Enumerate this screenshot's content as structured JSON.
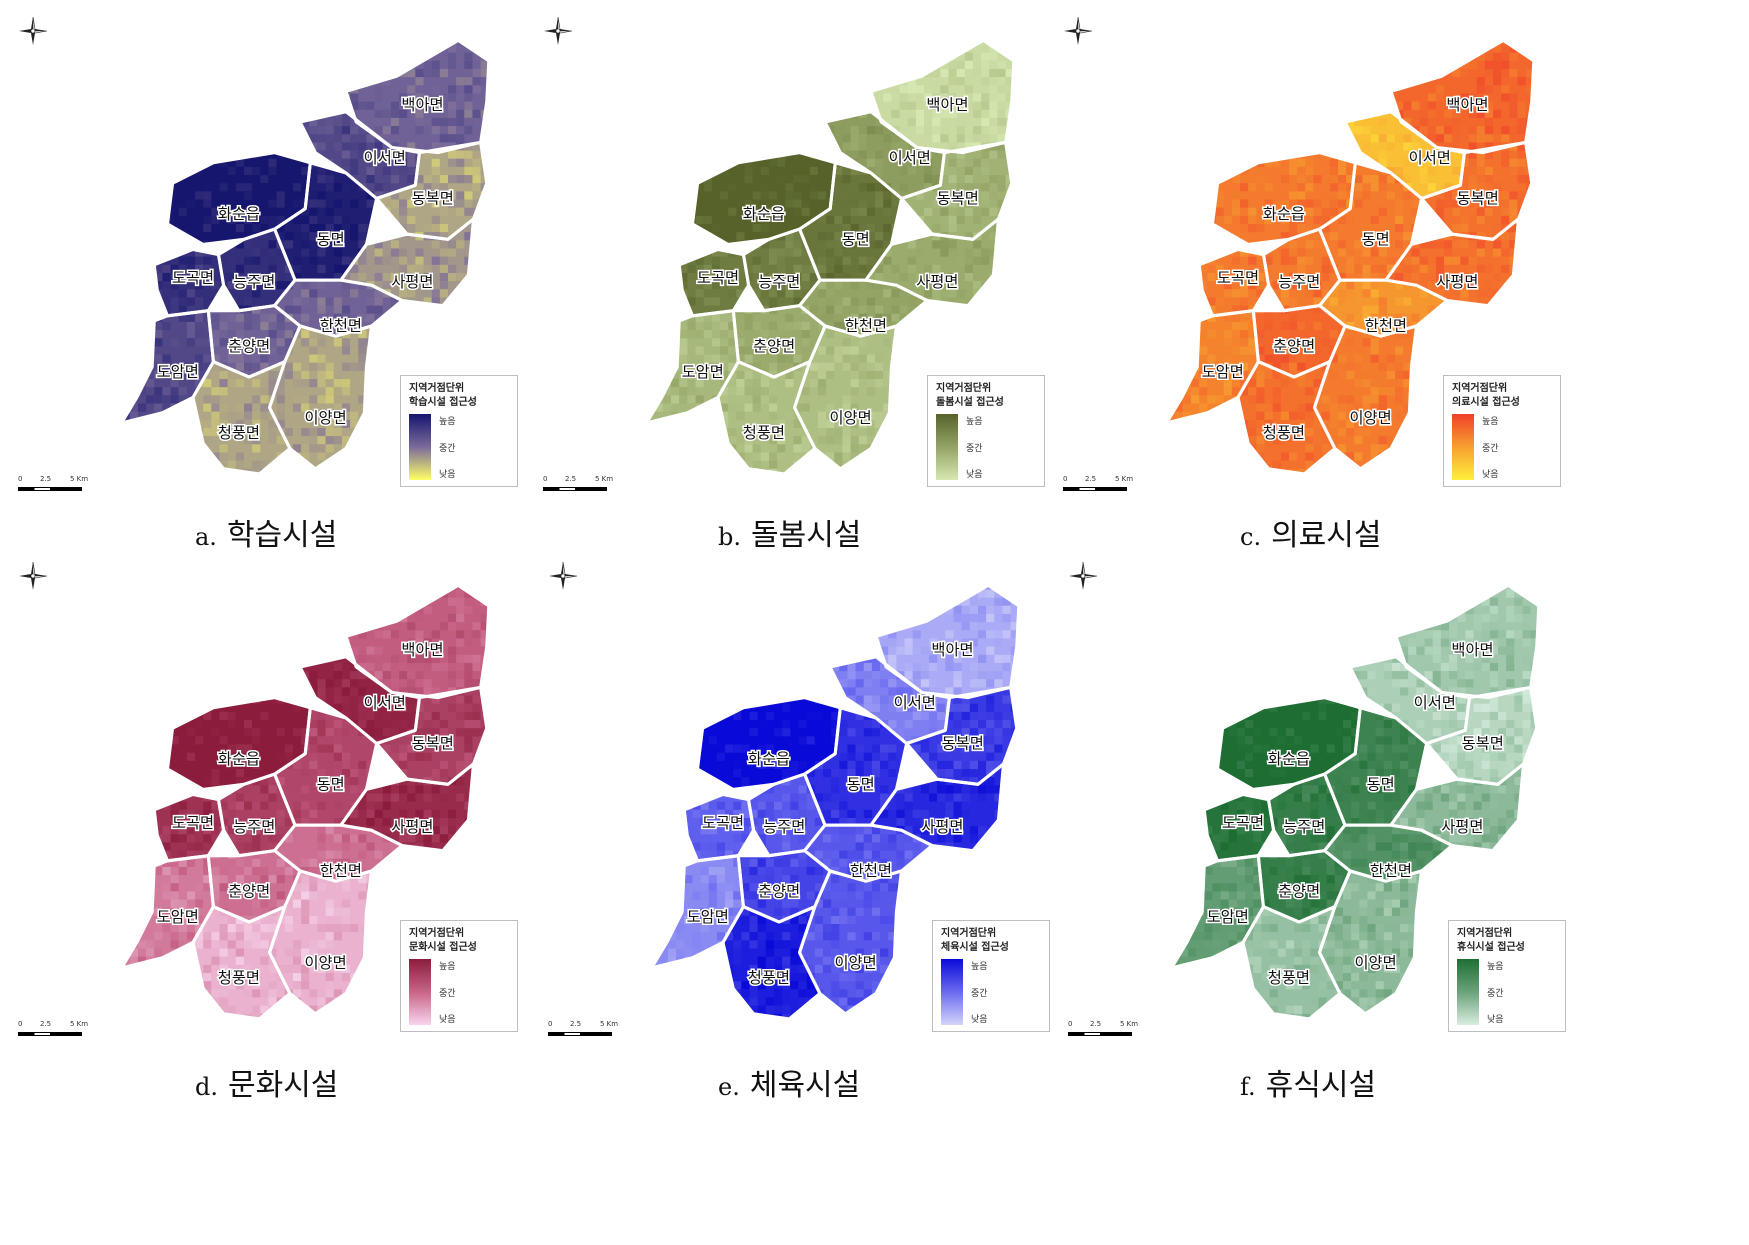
{
  "districts": [
    "백아면",
    "이서면",
    "동복면",
    "화순읍",
    "동면",
    "도곡면",
    "능주면",
    "사평면",
    "한천면",
    "춘양면",
    "도암면",
    "이양면",
    "청풍면"
  ],
  "legend_levels": {
    "high": "높음",
    "mid": "중간",
    "low": "낮음"
  },
  "scale": {
    "zero": "0",
    "mid": "2.5",
    "end": "5 Km"
  },
  "panels": [
    {
      "letter": "a.",
      "caption": "학습시설",
      "legend_title_1": "지역거점단위",
      "legend_title_2": "학습시설 접근성",
      "colors": {
        "high": "#16166e",
        "mid": "#7a6a9a",
        "low": "#ffff66"
      },
      "levels": {
        "백아면": 0.55,
        "이서면": 0.7,
        "동복면": 0.3,
        "화순읍": 1.0,
        "동면": 0.95,
        "도곡면": 0.85,
        "능주면": 0.85,
        "사평면": 0.35,
        "한천면": 0.55,
        "춘양면": 0.55,
        "도암면": 0.7,
        "이양면": 0.3,
        "청풍면": 0.3
      }
    },
    {
      "letter": "b.",
      "caption": "돌봄시설",
      "legend_title_1": "지역거점단위",
      "legend_title_2": "돌봄시설 접근성",
      "colors": {
        "high": "#56622a",
        "mid": "#93a465",
        "low": "#d6e8b2"
      },
      "levels": {
        "백아면": 0.1,
        "이서면": 0.55,
        "동복면": 0.4,
        "화순읍": 1.0,
        "동면": 0.85,
        "도곡면": 0.8,
        "능주면": 0.8,
        "사평면": 0.45,
        "한천면": 0.5,
        "춘양면": 0.45,
        "도암면": 0.35,
        "이양면": 0.3,
        "청풍면": 0.3
      }
    },
    {
      "letter": "c.",
      "caption": "의료시설",
      "legend_title_1": "지역거점단위",
      "legend_title_2": "의료시설 접근성",
      "colors": {
        "high": "#f0402a",
        "mid": "#f7a030",
        "low": "#ffef3c"
      },
      "levels": {
        "백아면": 0.8,
        "이서면": 0.3,
        "동복면": 0.75,
        "화순읍": 0.7,
        "동면": 0.7,
        "도곡면": 0.7,
        "능주면": 0.7,
        "사평면": 0.75,
        "한천면": 0.55,
        "춘양면": 0.8,
        "도암면": 0.65,
        "이양면": 0.7,
        "청풍면": 0.75
      }
    },
    {
      "letter": "d.",
      "caption": "문화시설",
      "legend_title_1": "지역거점단위",
      "legend_title_2": "문화시설 접근성",
      "colors": {
        "high": "#8c1c3c",
        "mid": "#c86488",
        "low": "#f8d4ec"
      },
      "levels": {
        "백아면": 0.55,
        "이서면": 0.95,
        "동복면": 0.75,
        "화순읍": 1.0,
        "동면": 0.7,
        "도곡면": 0.85,
        "능주면": 0.75,
        "사평면": 0.9,
        "한천면": 0.45,
        "춘양면": 0.45,
        "도암면": 0.4,
        "이양면": 0.15,
        "청풍면": 0.15
      }
    },
    {
      "letter": "e.",
      "caption": "체육시설",
      "legend_title_1": "지역거점단위",
      "legend_title_2": "체육시설 접근성",
      "colors": {
        "high": "#0a0ad8",
        "mid": "#6a6af0",
        "low": "#d4d4fa"
      },
      "levels": {
        "백아면": 0.2,
        "이서면": 0.4,
        "동복면": 0.75,
        "화순읍": 1.0,
        "동면": 0.8,
        "도곡면": 0.55,
        "능주면": 0.6,
        "사평면": 0.85,
        "한천면": 0.6,
        "춘양면": 0.7,
        "도암면": 0.35,
        "이양면": 0.6,
        "청풍면": 0.9
      }
    },
    {
      "letter": "f.",
      "caption": "휴식시설",
      "legend_title_1": "지역거점단위",
      "legend_title_2": "휴식시설 접근성",
      "colors": {
        "high": "#1e6e34",
        "mid": "#6aa27a",
        "low": "#d8eee0"
      },
      "levels": {
        "백아면": 0.25,
        "이서면": 0.2,
        "동복면": 0.15,
        "화순읍": 1.0,
        "동면": 0.8,
        "도곡면": 0.95,
        "능주면": 0.85,
        "사평면": 0.35,
        "한천면": 0.65,
        "춘양면": 0.85,
        "도암면": 0.55,
        "이양면": 0.35,
        "청풍면": 0.3
      }
    }
  ]
}
